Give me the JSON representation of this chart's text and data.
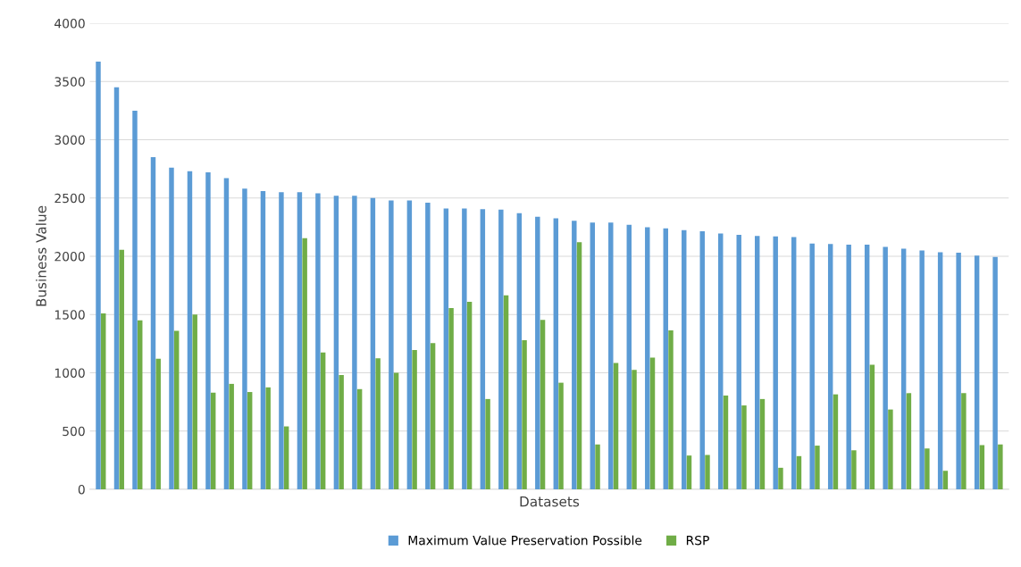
{
  "chart_data": {
    "type": "bar",
    "xlabel": "Datasets",
    "ylabel": "Business Value",
    "categories": [
      null,
      null,
      null,
      null,
      null,
      null,
      null,
      null,
      null,
      null,
      null,
      null,
      null,
      null,
      null,
      null,
      null,
      null,
      null,
      null,
      null,
      null,
      null,
      null,
      null,
      null,
      null,
      null,
      null,
      null,
      null,
      null,
      null,
      null,
      null,
      null,
      null,
      null,
      null,
      null,
      null,
      null,
      null,
      null,
      null,
      null,
      null,
      null,
      null,
      null
    ],
    "series": [
      {
        "name": "Maximum Value Preservation Possible",
        "color": "#5b9bd5",
        "values": [
          3670,
          3450,
          3250,
          2850,
          2760,
          2730,
          2720,
          2670,
          2580,
          2560,
          2550,
          2550,
          2540,
          2520,
          2520,
          2500,
          2480,
          2480,
          2460,
          2410,
          2410,
          2405,
          2400,
          2370,
          2340,
          2325,
          2305,
          2290,
          2290,
          2270,
          2250,
          2240,
          2225,
          2215,
          2195,
          2185,
          2175,
          2170,
          2165,
          2110,
          2105,
          2100,
          2100,
          2080,
          2065,
          2050,
          2035,
          2030,
          2005,
          1995
        ]
      },
      {
        "name": "RSP",
        "color": "#70ad47",
        "values": [
          1510,
          2055,
          1450,
          1120,
          1360,
          1500,
          830,
          905,
          835,
          875,
          540,
          2155,
          1175,
          980,
          860,
          1125,
          1000,
          1195,
          1255,
          1555,
          1610,
          775,
          1665,
          1280,
          1455,
          915,
          2120,
          385,
          1085,
          1025,
          1130,
          1365,
          290,
          295,
          805,
          720,
          775,
          185,
          285,
          375,
          815,
          335,
          1070,
          685,
          825,
          350,
          160,
          825,
          380,
          385
        ]
      }
    ],
    "ylim": [
      0,
      4000
    ],
    "yticks": [
      0,
      500,
      1000,
      1500,
      2000,
      2500,
      3000,
      3500,
      4000
    ],
    "grid": "y",
    "legend": "bottom"
  }
}
